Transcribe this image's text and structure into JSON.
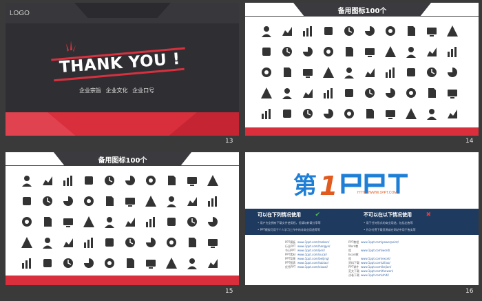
{
  "slides": {
    "s13": {
      "number": "13",
      "logo": "LOGO",
      "thank_you": "THANK YOU !",
      "tagline": "企业宗旨  企业文化  企业口号"
    },
    "s14": {
      "number": "14",
      "title": "备用图标100个"
    },
    "s15": {
      "number": "15",
      "title": "备用图标100个"
    },
    "s16": {
      "number": "16",
      "brand_url": "HTTP://WWW.1PPT.COM",
      "allowed_title": "可以在下列情况使用",
      "allowed_lines": [
        "• 用户完全拥有下载文件使用权，但请勿转载分享等",
        "• PPT模板可用于个人学习工作中的非商业用途等等"
      ],
      "denied_title": "不可以在以下情况使用",
      "denied_lines": [
        "• 用于任何形式的商业用途，包括出售等",
        "• 作为付费下载资源或在网站中用于售卖等"
      ],
      "links_left": [
        {
          "label": "PPT模板",
          "url": "www.1ppt.com/moban/"
        },
        {
          "label": "行业PPT",
          "url": "www.1ppt.com/hangye/"
        },
        {
          "label": "节日PPT",
          "url": "www.1ppt.com/jieri/"
        },
        {
          "label": "PPT素材",
          "url": "www.1ppt.com/sucai/"
        },
        {
          "label": "PPT背景",
          "url": "www.1ppt.com/beijing/"
        },
        {
          "label": "PPT图表",
          "url": "www.1ppt.com/tubiao/"
        },
        {
          "label": "优秀PPT",
          "url": "www.1ppt.com/xiazai/"
        }
      ],
      "links_right": [
        {
          "label": "PPT教程",
          "url": "www.1ppt.com/powerpoint/"
        },
        {
          "label": "Word教程",
          "url": "www.1ppt.com/word/"
        },
        {
          "label": "Excel教程",
          "url": "www.1ppt.com/excel/"
        },
        {
          "label": "资料下载",
          "url": "www.1ppt.com/ziliao/"
        },
        {
          "label": "PPT课件",
          "url": "www.1ppt.com/kejian/"
        },
        {
          "label": "范文下载",
          "url": "www.1ppt.com/fanwen/"
        },
        {
          "label": "试卷下载",
          "url": "www.1ppt.com/shiti/"
        }
      ]
    }
  },
  "colors": {
    "accent_red": "#d92e3c",
    "dark": "#3b3b3f",
    "navy": "#1f3a5f",
    "brand_blue": "#1f7fd6",
    "brand_orange": "#e15a1e"
  },
  "icons14": [
    "user-icon",
    "scissors-icon",
    "bulb-icon",
    "clock-icon",
    "tv-icon",
    "laptop-icon",
    "chat-icon",
    "team-icon",
    "phone-icon",
    "document-icon",
    "camera-icon",
    "tag-icon",
    "truck-icon",
    "bottle-icon",
    "gift-icon",
    "box-icon",
    "chart-up-icon",
    "coins-icon",
    "music-file-icon",
    "edit-file-icon",
    "people-icon",
    "monitor-icon",
    "speed-icon",
    "mic-icon",
    "refresh-icon",
    "home-icon",
    "signal-icon",
    "globe-icon",
    "flag-icon",
    "report-icon",
    "tools-icon",
    "bar-icon",
    "link-icon",
    "thumb-icon",
    "shield-icon",
    "woman-icon",
    "man-icon",
    "tie-icon",
    "building-icon",
    "cart-icon",
    "pie-icon",
    "pie2-icon",
    "pie3-icon",
    "line-chart-icon",
    "wave-chart-icon",
    "bars-icon",
    "area-icon",
    "bars2-icon",
    "donut-icon",
    "gauge-icon"
  ],
  "icons15": [
    "cart2-icon",
    "alarm-icon",
    "tower-icon",
    "engine-icon",
    "oil-icon",
    "headlight-icon",
    "wrench-icon",
    "fuel-icon",
    "disc-icon",
    "driver-icon",
    "hand-money-icon",
    "cash-icon",
    "dashboard-icon",
    "bolt-icon",
    "car-home-icon",
    "plug-icon",
    "worker-icon",
    "gear-icon",
    "dollar-icon",
    "money-icon",
    "register-icon",
    "lifebuoy-icon",
    "group-icon",
    "battery-icon",
    "warning-icon",
    "tire-icon",
    "bank-icon",
    "piggy-icon",
    "steering-icon",
    "alert-icon",
    "mobile-icon",
    "id-icon",
    "sun-icon",
    "pot-icon",
    "check-icon",
    "seat-icon",
    "umbrella-icon",
    "stack-icon",
    "can-icon",
    "book-icon",
    "recycle-icon",
    "tube-icon",
    "mechanic-icon",
    "wallet-icon",
    "cherry-icon",
    "pan-icon",
    "pay-icon",
    "calculator-icon",
    "bag-icon",
    "cap-icon"
  ]
}
